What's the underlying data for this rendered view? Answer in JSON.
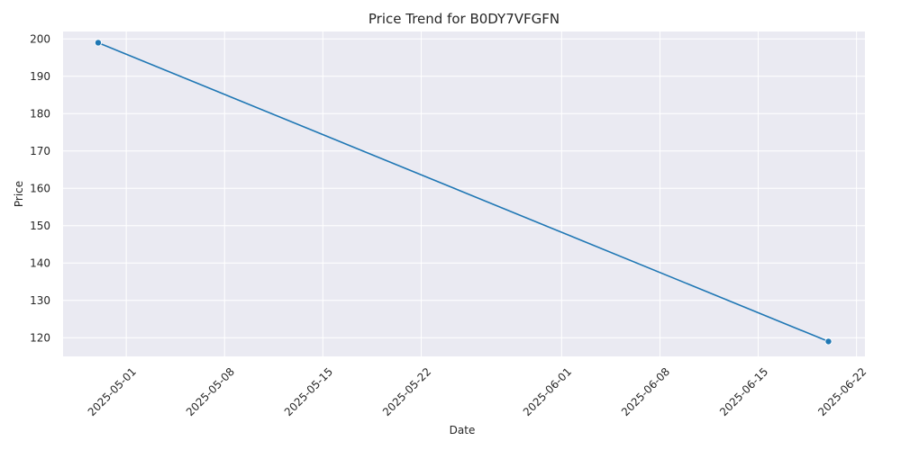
{
  "chart_data": {
    "type": "line",
    "title": "Price Trend for B0DY7VFGFN",
    "xlabel": "Date",
    "ylabel": "Price",
    "x_type": "date",
    "x": [
      "2025-04-29",
      "2025-06-20"
    ],
    "series": [
      {
        "values": [
          199,
          119
        ]
      }
    ],
    "x_ticks": [
      "2025-05-01",
      "2025-05-08",
      "2025-05-15",
      "2025-05-22",
      "2025-06-01",
      "2025-06-08",
      "2025-06-15",
      "2025-06-22"
    ],
    "y_ticks": [
      120,
      130,
      140,
      150,
      160,
      170,
      180,
      190,
      200
    ],
    "xlim": [
      "2025-04-26.5",
      "2025-06-22.6"
    ],
    "ylim": [
      115,
      202
    ],
    "grid": true,
    "markers": true,
    "colors": {
      "line": "#1f77b4",
      "plot_background": "#eaeaf2",
      "grid": "#ffffff"
    }
  }
}
